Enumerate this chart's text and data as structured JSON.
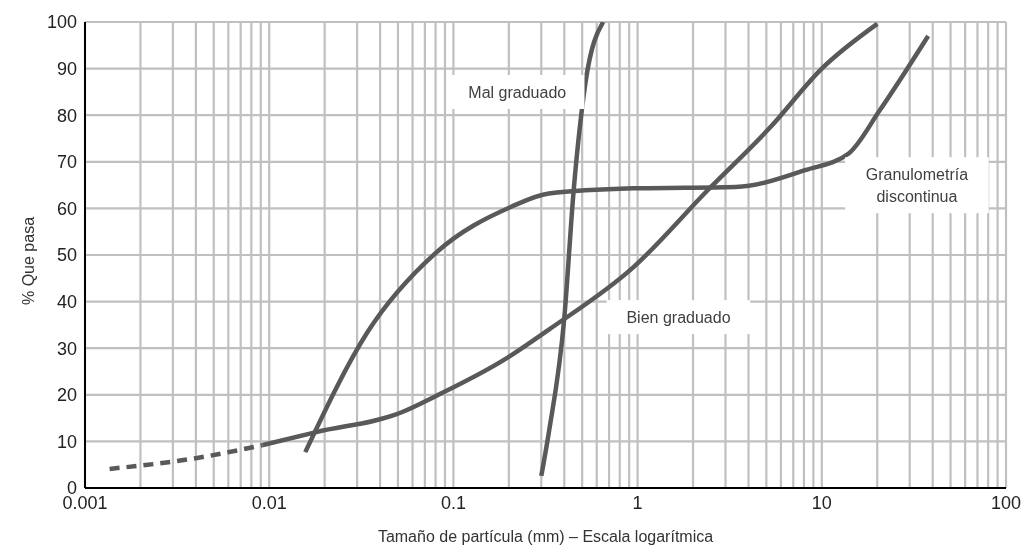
{
  "chart_data": {
    "type": "line",
    "xlabel": "Tamaño de partícula (mm) – Escala logarítmica",
    "ylabel": "%  Que pasa",
    "log": "x",
    "grid": true,
    "marker": "none",
    "xlim": [
      0.001,
      100
    ],
    "ylim": [
      0,
      100
    ],
    "xticks": [
      {
        "value": 0.001,
        "label": "0.001"
      },
      {
        "value": 0.002,
        "label": null
      },
      {
        "value": 0.003,
        "label": null
      },
      {
        "value": 0.004,
        "label": null
      },
      {
        "value": 0.005,
        "label": null
      },
      {
        "value": 0.006,
        "label": null
      },
      {
        "value": 0.007,
        "label": null
      },
      {
        "value": 0.008,
        "label": null
      },
      {
        "value": 0.009,
        "label": null
      },
      {
        "value": 0.01,
        "label": "0.01"
      },
      {
        "value": 0.02,
        "label": null
      },
      {
        "value": 0.03,
        "label": null
      },
      {
        "value": 0.04,
        "label": null
      },
      {
        "value": 0.05,
        "label": null
      },
      {
        "value": 0.06,
        "label": null
      },
      {
        "value": 0.07,
        "label": null
      },
      {
        "value": 0.08,
        "label": null
      },
      {
        "value": 0.09,
        "label": null
      },
      {
        "value": 0.1,
        "label": "0.1"
      },
      {
        "value": 0.2,
        "label": null
      },
      {
        "value": 0.3,
        "label": null
      },
      {
        "value": 0.4,
        "label": null
      },
      {
        "value": 0.5,
        "label": null
      },
      {
        "value": 0.6,
        "label": null
      },
      {
        "value": 0.7,
        "label": null
      },
      {
        "value": 0.8,
        "label": null
      },
      {
        "value": 0.9,
        "label": null
      },
      1,
      {
        "value": 2,
        "label": null
      },
      {
        "value": 3,
        "label": null
      },
      {
        "value": 4,
        "label": null
      },
      {
        "value": 5,
        "label": null
      },
      {
        "value": 6,
        "label": null
      },
      {
        "value": 7,
        "label": null
      },
      {
        "value": 8,
        "label": null
      },
      {
        "value": 9,
        "label": null
      },
      10,
      {
        "value": 20,
        "label": null
      },
      {
        "value": 30,
        "label": null
      },
      {
        "value": 40,
        "label": null
      },
      {
        "value": 50,
        "label": null
      },
      {
        "value": 60,
        "label": null
      },
      {
        "value": 70,
        "label": null
      },
      {
        "value": 80,
        "label": null
      },
      {
        "value": 90,
        "label": null
      },
      100
    ],
    "yticks": [
      0,
      10,
      20,
      30,
      40,
      50,
      60,
      70,
      80,
      90,
      100
    ],
    "series": [
      {
        "color": "#595959",
        "line_style": "dashed",
        "x": [
          0.00136,
          0.004,
          0.0092
        ],
        "values": [
          4.1,
          6.4,
          9.2
        ]
      },
      {
        "name": "Bien graduado",
        "color": "#595959",
        "line_style": "solid",
        "x": [
          0.0092,
          0.018,
          0.052,
          0.08,
          0.19,
          0.33,
          0.95,
          2.4,
          5.25,
          10,
          20
        ],
        "values": [
          9.2,
          12,
          16.2,
          19.7,
          27.6,
          34,
          47.4,
          63.9,
          77.4,
          90,
          99.6
        ]
      },
      {
        "name": "Mal graduado",
        "color": "#595959",
        "line_style": "solid",
        "x": [
          0.3,
          0.33,
          0.4,
          0.45,
          0.52,
          0.65
        ],
        "values": [
          2.6,
          12,
          36.5,
          64,
          86.7,
          100
        ]
      },
      {
        "name": "Granulometría discontinua",
        "color": "#595959",
        "line_style": "solid",
        "x": [
          0.0157,
          0.034,
          0.08,
          0.205,
          0.33,
          0.95,
          3.4,
          8.1,
          14,
          20.6,
          37.8
        ],
        "values": [
          7.7,
          33.3,
          50.4,
          60.3,
          63.2,
          64.3,
          64.6,
          68.2,
          71.8,
          81,
          97
        ]
      }
    ]
  }
}
